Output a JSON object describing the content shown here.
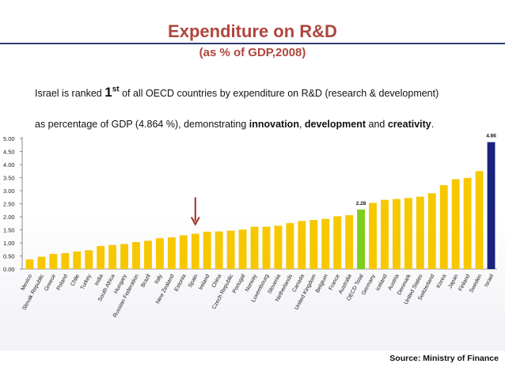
{
  "title": "Expenditure on R&D",
  "subtitle": "(as % of GDP,2008)",
  "caption": {
    "line1_pre": "Israel is ranked ",
    "rank_num": "1",
    "rank_suffix": "st",
    "line1_post": " of all OECD countries by expenditure on R&D (research & development)",
    "line2_pre": "as percentage of GDP (4.864 %), demonstrating ",
    "word_innovation": "innovation",
    "sep1": ", ",
    "word_development": "development",
    "and": " and ",
    "word_creativity": "creativity",
    "period": "."
  },
  "source": "Source: Ministry of Finance",
  "colors": {
    "title": "#b0463c",
    "bar_default": "#f7c700",
    "bar_oecd": "#7ccf1a",
    "bar_israel": "#1a237e",
    "arrow": "#9b2c22",
    "rule": "#2d3e73"
  },
  "chart_data": {
    "type": "bar",
    "title": "Expenditure on R&D",
    "xlabel": "",
    "ylabel": "",
    "ylim": [
      0,
      5
    ],
    "yticks": [
      "0.00",
      "0.50",
      "1.00",
      "1.50",
      "2.00",
      "2.50",
      "3.00",
      "3.50",
      "4.00",
      "4.50",
      "5.00"
    ],
    "categories": [
      "Mexico",
      "Slovak Republic",
      "Greece",
      "Poland",
      "Chile",
      "Turkey",
      "India",
      "South Africa",
      "Hungary",
      "Russian Federation",
      "Brazil",
      "Italy",
      "New Zealand",
      "Estonia",
      "Spain",
      "Ireland",
      "China",
      "Czech Republic",
      "Portugal",
      "Norway",
      "Luxembourg",
      "Slovenia",
      "Netherlands",
      "Canada",
      "United Kingdom",
      "Belgium",
      "France",
      "Australia",
      "OECD Total",
      "Germany",
      "Iceland",
      "Austria",
      "Denmark",
      "United States",
      "Switzerland",
      "Korea",
      "Japan",
      "Finland",
      "Sweden",
      "Israel"
    ],
    "values": [
      0.37,
      0.47,
      0.58,
      0.61,
      0.67,
      0.72,
      0.88,
      0.92,
      0.96,
      1.03,
      1.08,
      1.18,
      1.21,
      1.29,
      1.35,
      1.43,
      1.44,
      1.47,
      1.51,
      1.62,
      1.62,
      1.66,
      1.76,
      1.84,
      1.88,
      1.92,
      2.02,
      2.06,
      2.28,
      2.53,
      2.65,
      2.68,
      2.72,
      2.77,
      2.9,
      3.21,
      3.44,
      3.49,
      3.75,
      4.86
    ],
    "data_labels": [
      {
        "category": "OECD Total",
        "text": "2.28"
      },
      {
        "category": "Israel",
        "text": "4.86"
      }
    ],
    "highlight": {
      "OECD Total": "bar_oecd",
      "Israel": "bar_israel"
    },
    "annotation": {
      "type": "arrow",
      "points_to": "Spain"
    }
  }
}
